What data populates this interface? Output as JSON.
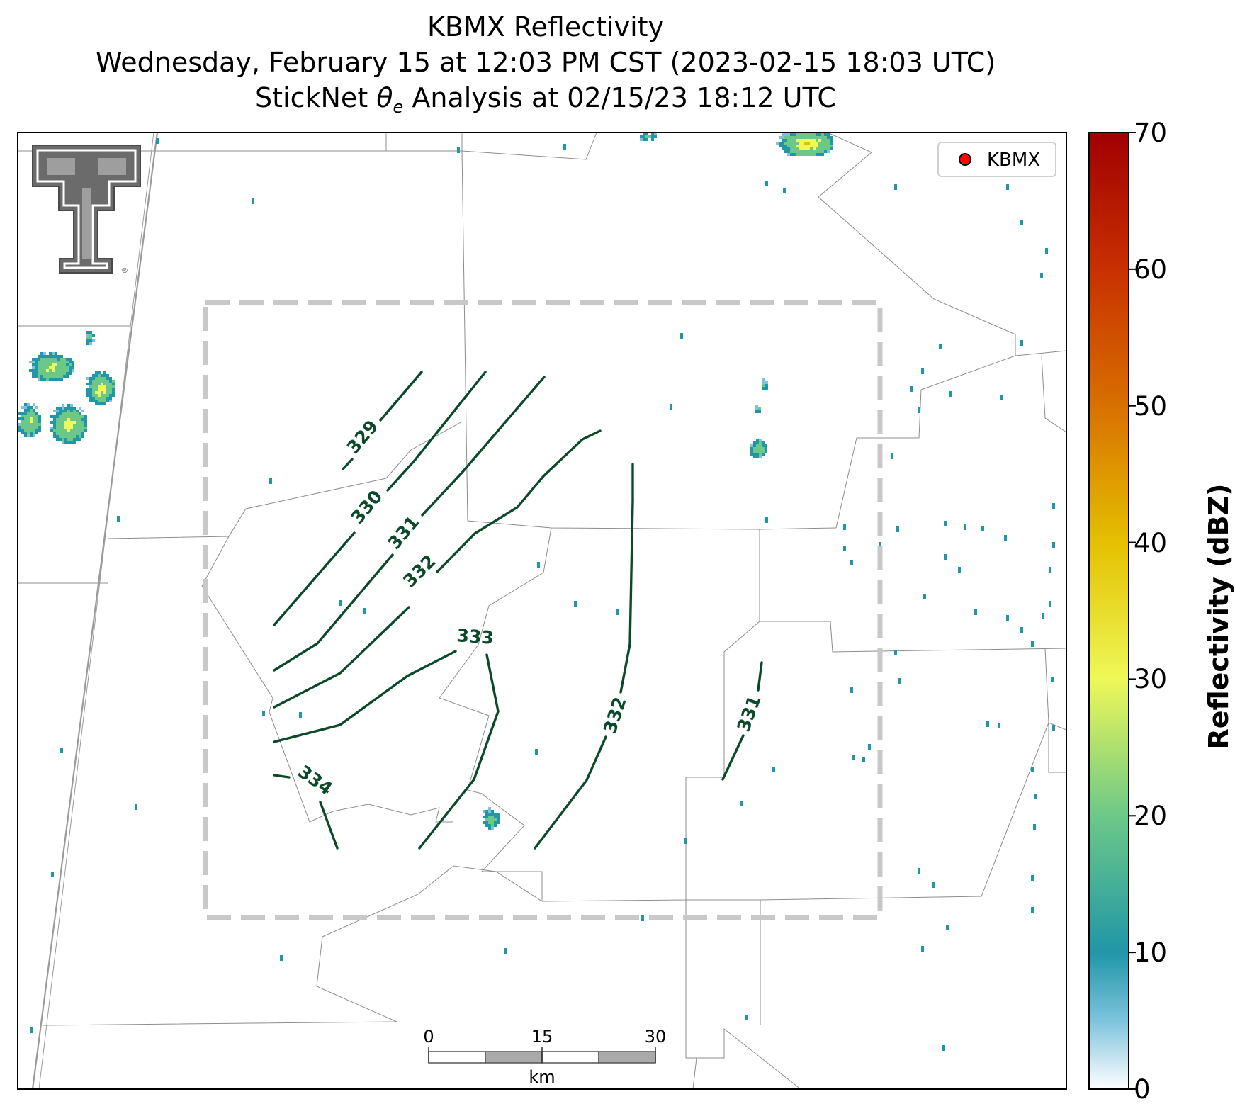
{
  "title": {
    "line1": "KBMX Reflectivity",
    "line2": "Wednesday, February 15 at 12:03 PM CST (2023-02-15 18:03 UTC)",
    "line3_prefix": "StickNet ",
    "line3_symbol": "θ",
    "line3_subscript": "e",
    "line3_suffix": " Analysis at 02/15/23 18:12 UTC"
  },
  "legend": {
    "marker_label": "KBMX",
    "marker_color": "#ff0000"
  },
  "scalebar": {
    "ticks": [
      "0",
      "15",
      "30"
    ],
    "unit": "km"
  },
  "colorbar": {
    "label": "Reflectivity (dBZ)",
    "ticks": [
      "0",
      "10",
      "20",
      "30",
      "40",
      "50",
      "60",
      "70"
    ],
    "min": 0,
    "max": 70,
    "stops": [
      {
        "v": 0,
        "c": "#ffffff"
      },
      {
        "v": 5,
        "c": "#7ec3dc"
      },
      {
        "v": 10,
        "c": "#2096a8"
      },
      {
        "v": 20,
        "c": "#6cc888"
      },
      {
        "v": 30,
        "c": "#eef858"
      },
      {
        "v": 40,
        "c": "#e4c000"
      },
      {
        "v": 50,
        "c": "#d87000"
      },
      {
        "v": 60,
        "c": "#c83000"
      },
      {
        "v": 70,
        "c": "#a00000"
      }
    ]
  },
  "contour_color": "#0b4a28",
  "contours": [
    {
      "label": "329"
    },
    {
      "label": "330"
    },
    {
      "label": "331"
    },
    {
      "label": "332"
    },
    {
      "label": "333"
    },
    {
      "label": "334"
    },
    {
      "label": "332"
    },
    {
      "label": "331"
    }
  ]
}
